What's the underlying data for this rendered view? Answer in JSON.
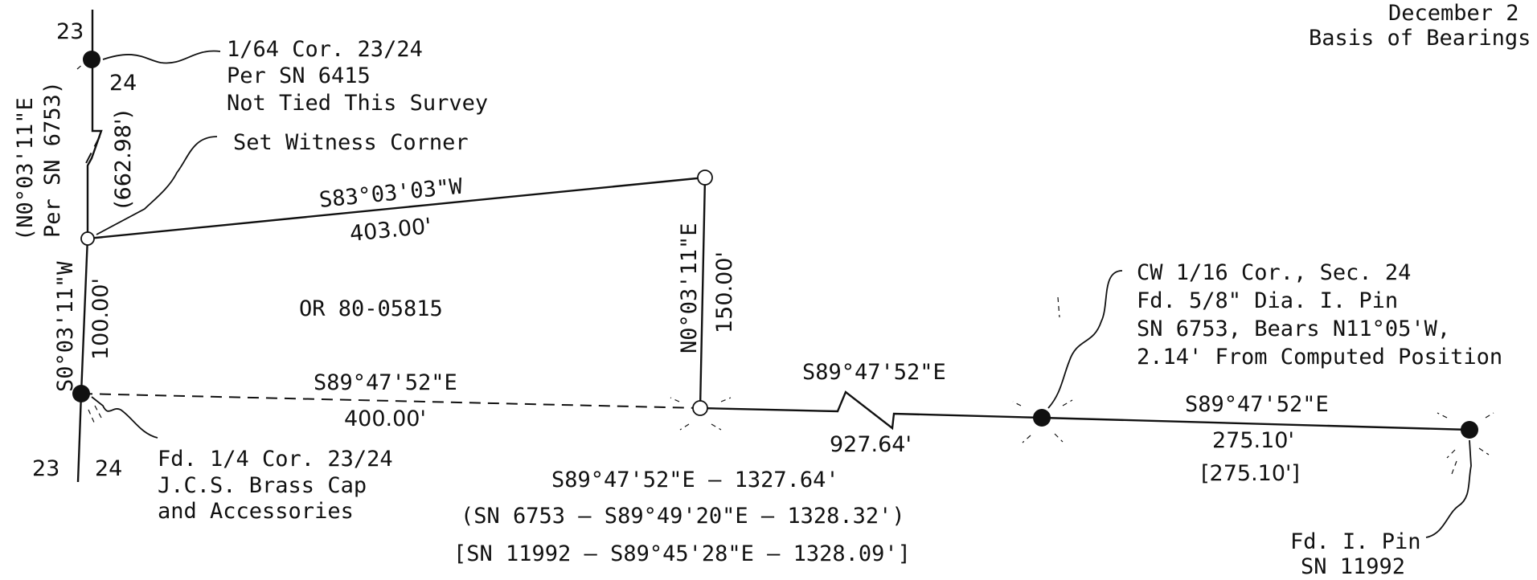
{
  "header": {
    "date_fragment": "December 2",
    "basis_fragment": "Basis of Bearings"
  },
  "section_numbers": {
    "top_left": "23",
    "top_right": "24",
    "bottom_left": "23",
    "bottom_right": "24"
  },
  "west_line": {
    "record_bearing": "(N0°03'11\"E",
    "record_source": "Per SN 6753)",
    "record_distance": "(662.98')",
    "bearing": "S0°03'11\"W",
    "distance": "100.00'"
  },
  "north_line": {
    "bearing": "S83°03'03\"W",
    "distance": "403.00'"
  },
  "east_line": {
    "bearing": "N0°03'11\"E",
    "distance": "150.00'"
  },
  "parcel_label": "OR 80-05815",
  "south_line_parcel": {
    "bearing": "S89°47'52\"E",
    "distance": "400.00'"
  },
  "south_line_middle": {
    "bearing": "S89°47'52\"E",
    "distance": "927.64'"
  },
  "south_line_east": {
    "bearing": "S89°47'52\"E",
    "distance": "275.10'",
    "record_distance": "[275.10']"
  },
  "totals": {
    "line1": "S89°47'52\"E – 1327.64'",
    "line2": "(SN 6753 – S89°49'20\"E – 1328.32')",
    "line3": "[SN 11992 – S89°45'28\"E – 1328.09']"
  },
  "callouts": {
    "sixtyfourth_corner": [
      "1/64 Cor. 23/24",
      "Per SN 6415",
      "Not Tied This Survey"
    ],
    "witness_corner": [
      "Set Witness Corner"
    ],
    "quarter_corner": [
      "Fd. 1/4 Cor. 23/24",
      "J.C.S. Brass Cap",
      "and Accessories"
    ],
    "cw_sixteenth_corner": [
      "CW 1/16 Cor., Sec. 24",
      "Fd. 5/8\" Dia. I. Pin",
      "SN 6753, Bears N11°05'W,",
      "2.14' From Computed Position"
    ],
    "iron_pin": [
      "Fd. I. Pin",
      "SN 11992"
    ]
  }
}
